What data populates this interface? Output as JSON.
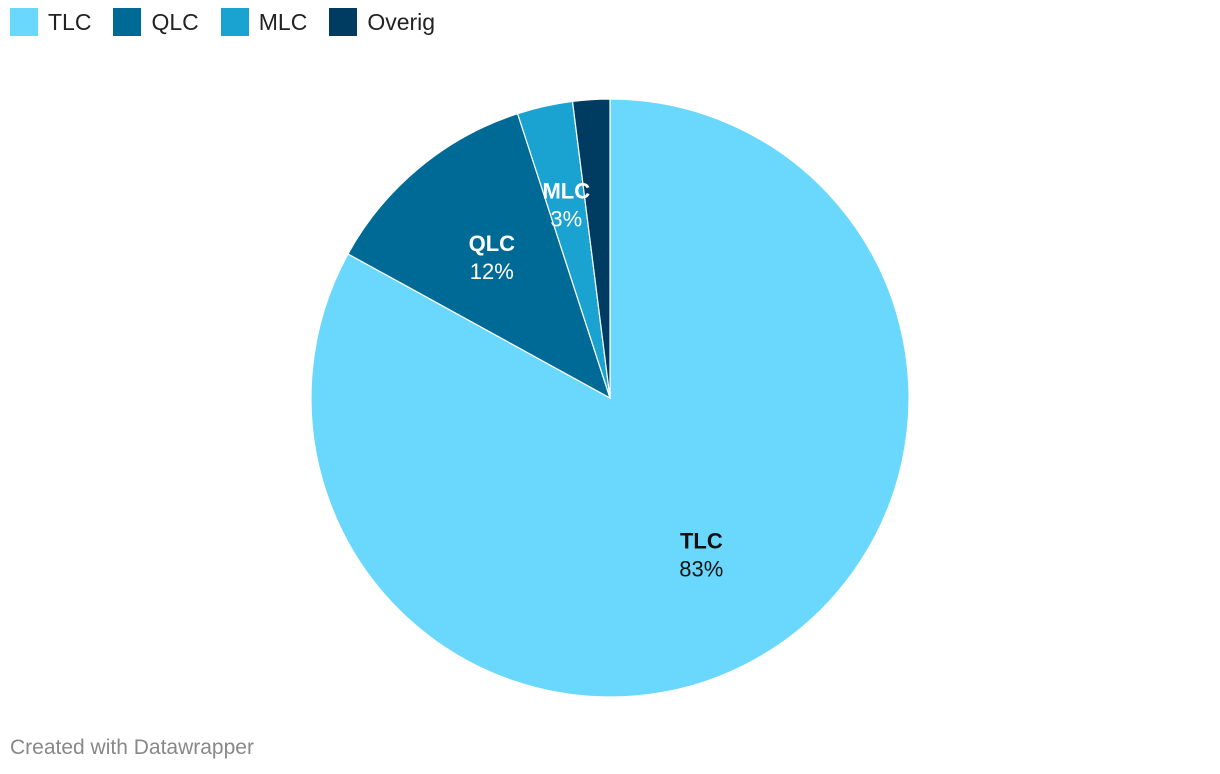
{
  "chart_data": {
    "type": "pie",
    "title": "",
    "categories": [
      "TLC",
      "QLC",
      "MLC",
      "Overig"
    ],
    "values": [
      83,
      12,
      3,
      2
    ],
    "value_labels": [
      "83%",
      "12%",
      "3%",
      ""
    ],
    "colors": [
      "#6ad7fd",
      "#006a96",
      "#1aa3d1",
      "#003b62"
    ],
    "label_colors": [
      "#111111",
      "#ffffff",
      "#ffffff",
      "#ffffff"
    ],
    "start_angle_deg": 0,
    "direction": "clockwise",
    "legend_position": "top-left"
  },
  "footer": {
    "credit": "Created with Datawrapper"
  }
}
